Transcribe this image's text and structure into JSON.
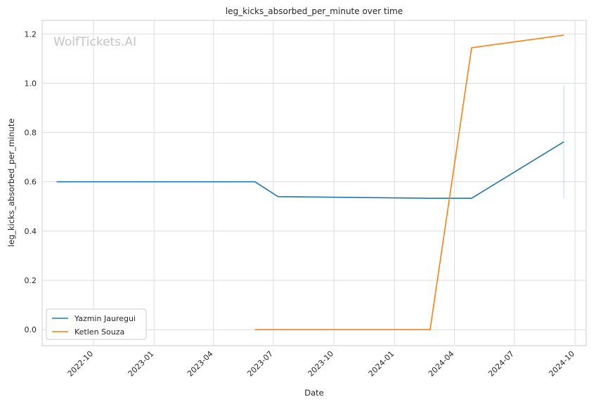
{
  "chart_data": {
    "type": "line",
    "title": "leg_kicks_absorbed_per_minute over time",
    "xlabel": "Date",
    "ylabel": "leg_kicks_absorbed_per_minute",
    "watermark": "WolfTickets.AI",
    "x_ticks": [
      "2022-10",
      "2023-01",
      "2023-04",
      "2023-07",
      "2023-10",
      "2024-01",
      "2024-04",
      "2024-07",
      "2024-10"
    ],
    "y_ticks": [
      "0.0",
      "0.2",
      "0.4",
      "0.6",
      "0.8",
      "1.0",
      "1.2"
    ],
    "xlim": [
      "2022-07-15",
      "2024-10-18"
    ],
    "ylim": [
      -0.065,
      1.255
    ],
    "grid": true,
    "legend_position": "lower-left",
    "series": [
      {
        "name": "Yazmin Jauregui",
        "color": "#1f77b4",
        "points": [
          {
            "x": "2022-08-06",
            "y": 0.6
          },
          {
            "x": "2023-06-03",
            "y": 0.6
          },
          {
            "x": "2023-07-08",
            "y": 0.54
          },
          {
            "x": "2024-02-24",
            "y": 0.533
          },
          {
            "x": "2024-04-27",
            "y": 0.533
          },
          {
            "x": "2024-09-14",
            "y": 0.762
          }
        ]
      },
      {
        "name": "Ketlen Souza",
        "color": "#ff7f0e",
        "points": [
          {
            "x": "2023-06-03",
            "y": 0.0
          },
          {
            "x": "2024-02-24",
            "y": 0.0
          },
          {
            "x": "2024-04-27",
            "y": 1.144
          },
          {
            "x": "2024-09-14",
            "y": 1.195
          }
        ]
      }
    ],
    "error_band": {
      "x": "2024-09-14",
      "low": 0.533,
      "high": 0.99,
      "color": "#9ecae1"
    }
  }
}
